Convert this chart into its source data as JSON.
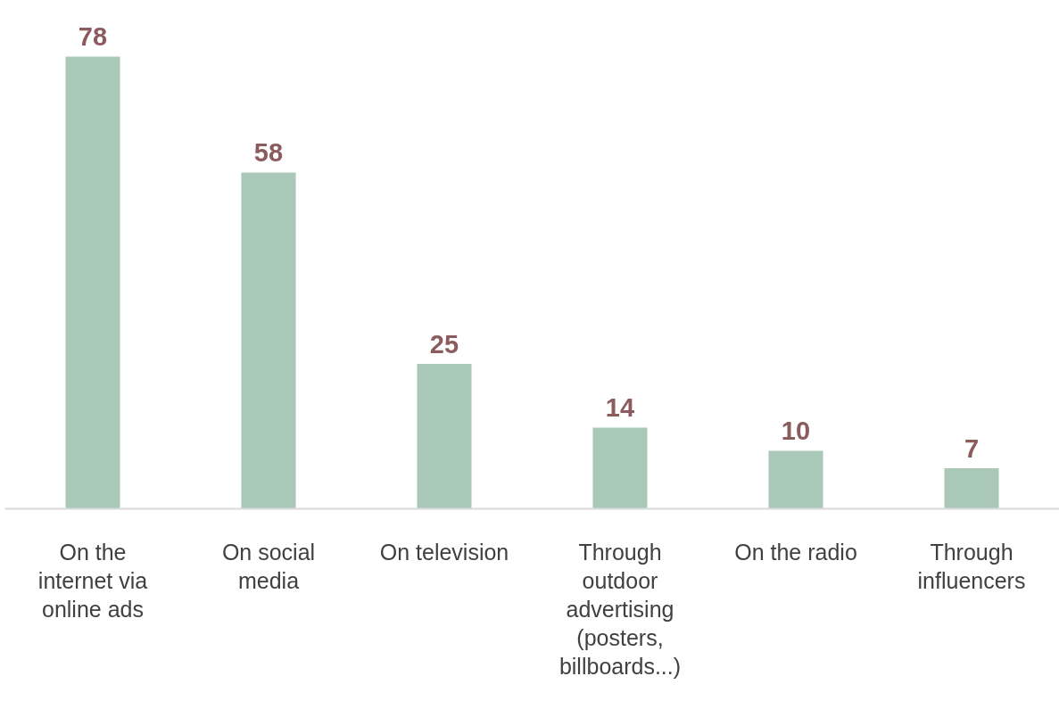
{
  "chart_data": {
    "type": "bar",
    "categories": [
      "On the internet via online ads",
      "On social media",
      "On television",
      "Through outdoor advertising (posters, billboards...)",
      "On the radio",
      "Through influencers"
    ],
    "values": [
      78,
      58,
      25,
      14,
      10,
      7
    ],
    "color": "#a9c8b8",
    "data_labels": true,
    "grid": false,
    "tick_labels": "x"
  }
}
